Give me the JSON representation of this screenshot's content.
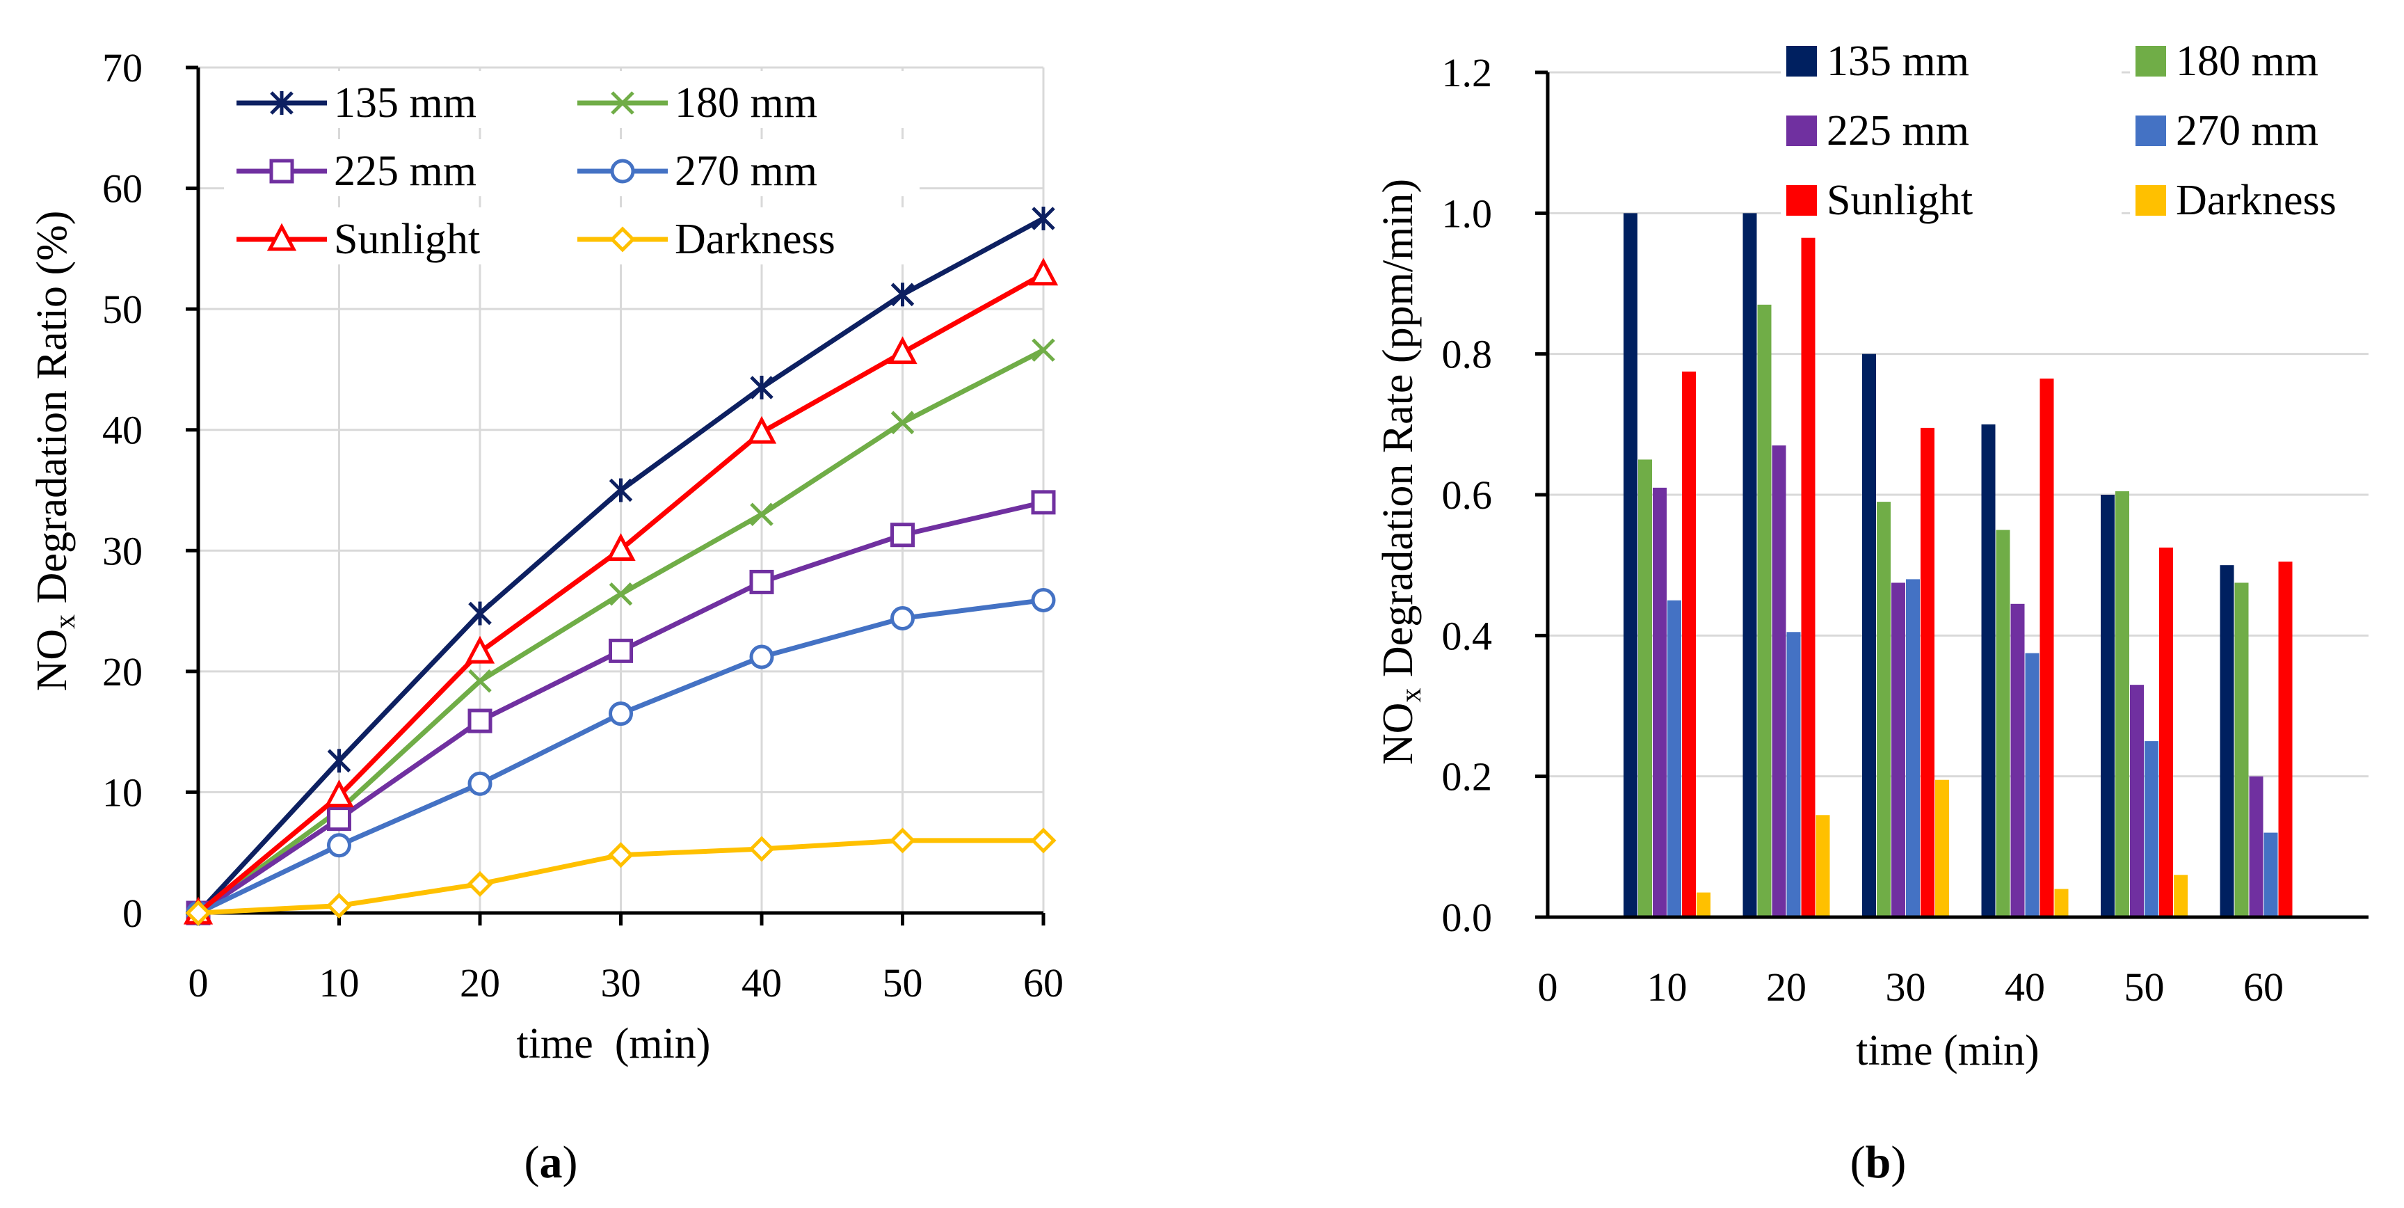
{
  "chart_data": [
    {
      "type": "line",
      "panel_label": "a",
      "xlabel": "time  (min)",
      "ylabel": {
        "prefix": "NO",
        "sub": "x",
        "suffix": " Degradation Ratio (%)"
      },
      "x": [
        0,
        10,
        20,
        30,
        40,
        50,
        60
      ],
      "xlim": [
        0,
        60
      ],
      "ylim": [
        0,
        70
      ],
      "yticks": [
        0,
        10,
        20,
        30,
        40,
        50,
        60,
        70
      ],
      "grid": true,
      "legend_position": "top-left",
      "series": [
        {
          "name": "135 mm",
          "color": "#0d2061",
          "marker": "star",
          "values": [
            0,
            12.6,
            24.8,
            35.0,
            43.5,
            51.2,
            57.5
          ]
        },
        {
          "name": "180 mm",
          "color": "#70ad47",
          "marker": "x",
          "values": [
            0,
            8.5,
            19.2,
            26.4,
            33.0,
            40.6,
            46.6
          ]
        },
        {
          "name": "225 mm",
          "color": "#7030a0",
          "marker": "square",
          "values": [
            0,
            7.8,
            15.9,
            21.7,
            27.4,
            31.3,
            34.0
          ]
        },
        {
          "name": "270 mm",
          "color": "#4472c4",
          "marker": "circle",
          "values": [
            0,
            5.6,
            10.7,
            16.5,
            21.2,
            24.4,
            25.9
          ]
        },
        {
          "name": "Sunlight",
          "color": "#ff0000",
          "marker": "triangle",
          "values": [
            0,
            9.7,
            21.6,
            30.1,
            39.8,
            46.4,
            52.9
          ]
        },
        {
          "name": "Darkness",
          "color": "#ffc000",
          "marker": "diamond",
          "values": [
            0,
            0.6,
            2.4,
            4.8,
            5.3,
            6.0,
            6.0
          ]
        }
      ]
    },
    {
      "type": "bar",
      "panel_label": "b",
      "xlabel": "time (min)",
      "ylabel": {
        "prefix": "NO",
        "sub": "x",
        "suffix": " Degradation Rate (ppm/min)"
      },
      "xticks": [
        "0",
        "10",
        "20",
        "30",
        "40",
        "50",
        "60"
      ],
      "categories": [
        "10",
        "20",
        "30",
        "40",
        "50",
        "60"
      ],
      "ylim": [
        0,
        1.2
      ],
      "yticks": [
        "0.0",
        "0.2",
        "0.4",
        "0.6",
        "0.8",
        "1.0",
        "1.2"
      ],
      "grid": true,
      "legend_position": "top-right",
      "series": [
        {
          "name": "135 mm",
          "color": "#002060",
          "values": [
            1.0,
            1.0,
            0.8,
            0.7,
            0.6,
            0.5
          ]
        },
        {
          "name": "180 mm",
          "color": "#70ad47",
          "values": [
            0.65,
            0.87,
            0.59,
            0.55,
            0.605,
            0.475
          ]
        },
        {
          "name": "225 mm",
          "color": "#7030a0",
          "values": [
            0.61,
            0.67,
            0.475,
            0.445,
            0.33,
            0.2
          ]
        },
        {
          "name": "270 mm",
          "color": "#4472c4",
          "values": [
            0.45,
            0.405,
            0.48,
            0.375,
            0.25,
            0.12
          ]
        },
        {
          "name": "Sunlight",
          "color": "#ff0000",
          "values": [
            0.775,
            0.965,
            0.695,
            0.765,
            0.525,
            0.505
          ]
        },
        {
          "name": "Darkness",
          "color": "#ffc000",
          "values": [
            0.035,
            0.145,
            0.195,
            0.04,
            0.06,
            0.0
          ]
        }
      ]
    }
  ]
}
